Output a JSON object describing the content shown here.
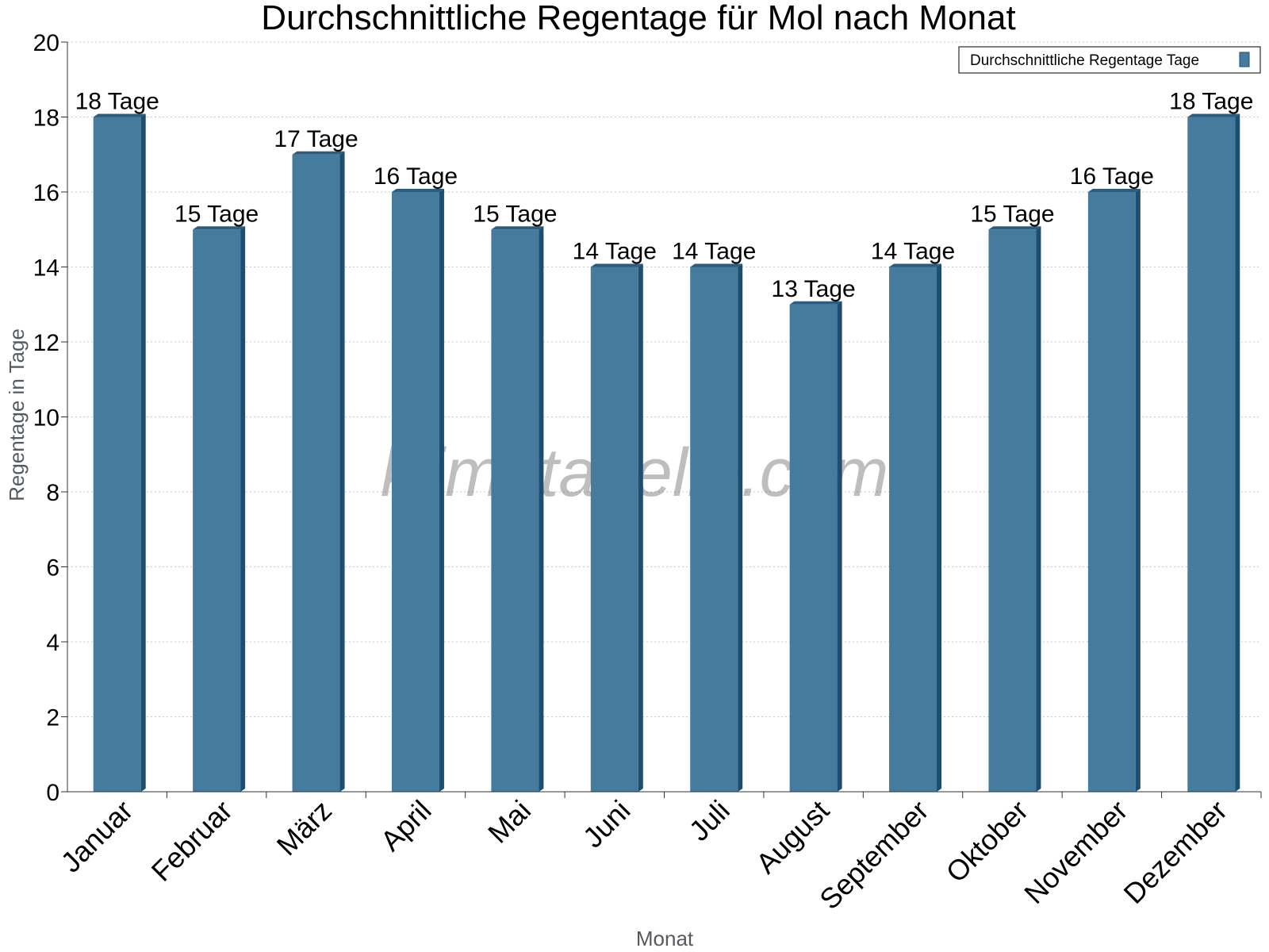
{
  "chart_data": {
    "type": "bar",
    "title": "Durchschnittliche Regentage für Mol nach Monat",
    "xlabel": "Monat",
    "ylabel": "Regentage in Tage",
    "categories": [
      "Januar",
      "Februar",
      "März",
      "April",
      "Mai",
      "Juni",
      "Juli",
      "August",
      "September",
      "Oktober",
      "November",
      "Dezember"
    ],
    "series": [
      {
        "name": "Durchschnittliche Regentage Tage",
        "values": [
          18,
          15,
          17,
          16,
          15,
          14,
          14,
          13,
          14,
          15,
          16,
          18
        ],
        "data_labels": [
          "18 Tage",
          "15 Tage",
          "17 Tage",
          "16 Tage",
          "15 Tage",
          "14 Tage",
          "14 Tage",
          "13 Tage",
          "14 Tage",
          "15 Tage",
          "16 Tage",
          "18 Tage"
        ]
      }
    ],
    "ylim": [
      0,
      20
    ],
    "yticks": [
      0,
      2,
      4,
      6,
      8,
      10,
      12,
      14,
      16,
      18,
      20
    ],
    "grid": true,
    "legend_position": "top-right",
    "colors": {
      "bar": "#457b9d",
      "bar_side": "#1d4e6e",
      "bar_top": "#2a5d80",
      "axis": "#333333"
    },
    "watermark": "klimatabelle.com"
  }
}
